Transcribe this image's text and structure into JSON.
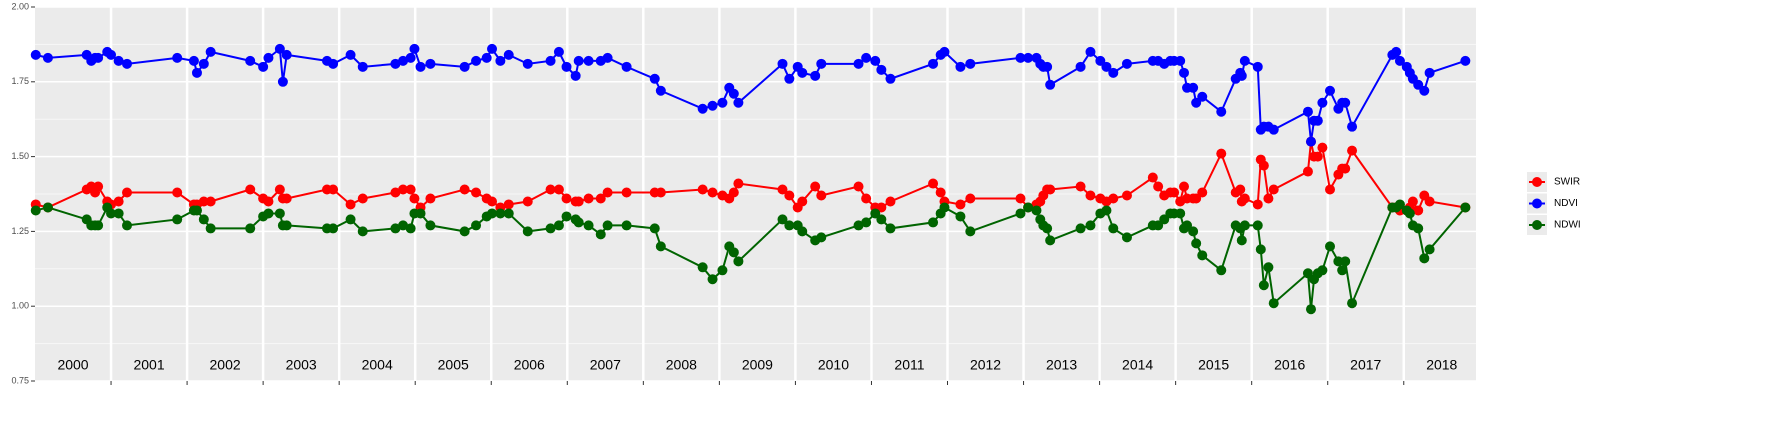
{
  "chart_data": {
    "type": "line",
    "x": [
      2000.01,
      2000.17,
      2000.68,
      2000.74,
      2000.79,
      2000.83,
      2000.95,
      2001.0,
      2001.1,
      2001.21,
      2001.87,
      2002.09,
      2002.13,
      2002.22,
      2002.31,
      2002.83,
      2003.0,
      2003.07,
      2003.22,
      2003.26,
      2003.31,
      2003.84,
      2003.92,
      2004.15,
      2004.31,
      2004.74,
      2004.84,
      2004.94,
      2004.99,
      2005.07,
      2005.2,
      2005.65,
      2005.8,
      2005.94,
      2006.01,
      2006.12,
      2006.23,
      2006.48,
      2006.78,
      2006.89,
      2006.99,
      2007.11,
      2007.15,
      2007.28,
      2007.44,
      2007.53,
      2007.78,
      2008.15,
      2008.23,
      2008.78,
      2008.91,
      2009.04,
      2009.13,
      2009.19,
      2009.25,
      2009.83,
      2009.92,
      2010.03,
      2010.09,
      2010.26,
      2010.34,
      2010.83,
      2010.93,
      2011.05,
      2011.13,
      2011.25,
      2011.81,
      2011.91,
      2011.96,
      2012.17,
      2012.3,
      2012.96,
      2013.06,
      2013.17,
      2013.22,
      2013.26,
      2013.31,
      2013.35,
      2013.75,
      2013.88,
      2014.01,
      2014.09,
      2014.18,
      2014.36,
      2014.7,
      2014.77,
      2014.85,
      2014.93,
      2014.98,
      2015.06,
      2015.11,
      2015.15,
      2015.23,
      2015.27,
      2015.35,
      2015.6,
      2015.79,
      2015.85,
      2015.87,
      2015.91,
      2016.08,
      2016.12,
      2016.16,
      2016.22,
      2016.29,
      2016.74,
      2016.78,
      2016.82,
      2016.87,
      2016.93,
      2017.03,
      2017.14,
      2017.19,
      2017.23,
      2017.32,
      2017.85,
      2017.9,
      2017.95,
      2018.04,
      2018.08,
      2018.12,
      2018.19,
      2018.27,
      2018.34,
      2018.81
    ],
    "series": [
      {
        "name": "SWIR",
        "color": "#ff0000",
        "values": [
          1.34,
          1.33,
          1.39,
          1.4,
          1.38,
          1.4,
          1.35,
          1.34,
          1.35,
          1.38,
          1.38,
          1.34,
          1.34,
          1.35,
          1.35,
          1.39,
          1.36,
          1.35,
          1.39,
          1.36,
          1.36,
          1.39,
          1.39,
          1.34,
          1.36,
          1.38,
          1.39,
          1.39,
          1.36,
          1.33,
          1.36,
          1.39,
          1.38,
          1.36,
          1.35,
          1.33,
          1.34,
          1.35,
          1.39,
          1.39,
          1.36,
          1.35,
          1.35,
          1.36,
          1.36,
          1.38,
          1.38,
          1.38,
          1.38,
          1.39,
          1.38,
          1.37,
          1.36,
          1.38,
          1.41,
          1.39,
          1.37,
          1.33,
          1.35,
          1.4,
          1.37,
          1.4,
          1.36,
          1.33,
          1.33,
          1.35,
          1.41,
          1.38,
          1.35,
          1.34,
          1.36,
          1.36,
          1.33,
          1.34,
          1.35,
          1.37,
          1.39,
          1.39,
          1.4,
          1.37,
          1.36,
          1.35,
          1.36,
          1.37,
          1.43,
          1.4,
          1.37,
          1.38,
          1.38,
          1.35,
          1.4,
          1.36,
          1.36,
          1.36,
          1.38,
          1.51,
          1.38,
          1.39,
          1.35,
          1.36,
          1.34,
          1.49,
          1.47,
          1.36,
          1.39,
          1.45,
          1.55,
          1.5,
          1.5,
          1.53,
          1.39,
          1.44,
          1.46,
          1.46,
          1.52,
          1.33,
          1.33,
          1.32,
          1.32,
          1.33,
          1.35,
          1.32,
          1.37,
          1.35,
          1.33
        ]
      },
      {
        "name": "NDVI",
        "color": "#0000ff",
        "values": [
          1.84,
          1.83,
          1.84,
          1.82,
          1.83,
          1.83,
          1.85,
          1.84,
          1.82,
          1.81,
          1.83,
          1.82,
          1.78,
          1.81,
          1.85,
          1.82,
          1.8,
          1.83,
          1.86,
          1.75,
          1.84,
          1.82,
          1.81,
          1.84,
          1.8,
          1.81,
          1.82,
          1.83,
          1.86,
          1.8,
          1.81,
          1.8,
          1.82,
          1.83,
          1.86,
          1.82,
          1.84,
          1.81,
          1.82,
          1.85,
          1.8,
          1.77,
          1.82,
          1.82,
          1.82,
          1.83,
          1.8,
          1.76,
          1.72,
          1.66,
          1.67,
          1.68,
          1.73,
          1.71,
          1.68,
          1.81,
          1.76,
          1.8,
          1.78,
          1.77,
          1.81,
          1.81,
          1.83,
          1.82,
          1.79,
          1.76,
          1.81,
          1.84,
          1.85,
          1.8,
          1.81,
          1.83,
          1.83,
          1.83,
          1.81,
          1.8,
          1.8,
          1.74,
          1.8,
          1.85,
          1.82,
          1.8,
          1.78,
          1.81,
          1.82,
          1.82,
          1.81,
          1.82,
          1.82,
          1.82,
          1.78,
          1.73,
          1.73,
          1.68,
          1.7,
          1.65,
          1.76,
          1.78,
          1.77,
          1.82,
          1.8,
          1.59,
          1.6,
          1.6,
          1.59,
          1.65,
          1.55,
          1.62,
          1.62,
          1.68,
          1.72,
          1.66,
          1.68,
          1.68,
          1.6,
          1.84,
          1.85,
          1.82,
          1.8,
          1.78,
          1.76,
          1.74,
          1.72,
          1.78,
          1.82
        ]
      },
      {
        "name": "NDWI",
        "color": "#006400",
        "values": [
          1.32,
          1.33,
          1.29,
          1.27,
          1.27,
          1.27,
          1.33,
          1.31,
          1.31,
          1.27,
          1.29,
          1.32,
          1.32,
          1.29,
          1.26,
          1.26,
          1.3,
          1.31,
          1.31,
          1.27,
          1.27,
          1.26,
          1.26,
          1.29,
          1.25,
          1.26,
          1.27,
          1.26,
          1.31,
          1.31,
          1.27,
          1.25,
          1.27,
          1.3,
          1.31,
          1.31,
          1.31,
          1.25,
          1.26,
          1.27,
          1.3,
          1.29,
          1.28,
          1.27,
          1.24,
          1.27,
          1.27,
          1.26,
          1.2,
          1.13,
          1.09,
          1.12,
          1.2,
          1.18,
          1.15,
          1.29,
          1.27,
          1.27,
          1.25,
          1.22,
          1.23,
          1.27,
          1.28,
          1.31,
          1.29,
          1.26,
          1.28,
          1.31,
          1.33,
          1.3,
          1.25,
          1.31,
          1.33,
          1.32,
          1.29,
          1.27,
          1.26,
          1.22,
          1.26,
          1.27,
          1.31,
          1.32,
          1.26,
          1.23,
          1.27,
          1.27,
          1.29,
          1.31,
          1.31,
          1.31,
          1.26,
          1.27,
          1.25,
          1.21,
          1.17,
          1.12,
          1.27,
          1.26,
          1.22,
          1.27,
          1.27,
          1.19,
          1.07,
          1.13,
          1.01,
          1.11,
          0.99,
          1.09,
          1.11,
          1.12,
          1.2,
          1.15,
          1.12,
          1.15,
          1.01,
          1.33,
          1.33,
          1.34,
          1.32,
          1.31,
          1.27,
          1.26,
          1.16,
          1.19,
          1.33
        ]
      }
    ],
    "xlim": [
      2000,
      2018.95
    ],
    "xgrid": [
      2001,
      2002,
      2003,
      2004,
      2005,
      2006,
      2007,
      2008,
      2009,
      2010,
      2011,
      2012,
      2013,
      2014,
      2015,
      2016,
      2017,
      2018
    ],
    "xticks": [
      {
        "value": 2000.5,
        "label": "2000"
      },
      {
        "value": 2001.5,
        "label": "2001"
      },
      {
        "value": 2002.5,
        "label": "2002"
      },
      {
        "value": 2003.5,
        "label": "2003"
      },
      {
        "value": 2004.5,
        "label": "2004"
      },
      {
        "value": 2005.5,
        "label": "2005"
      },
      {
        "value": 2006.5,
        "label": "2006"
      },
      {
        "value": 2007.5,
        "label": "2007"
      },
      {
        "value": 2008.5,
        "label": "2008"
      },
      {
        "value": 2009.5,
        "label": "2009"
      },
      {
        "value": 2010.5,
        "label": "2010"
      },
      {
        "value": 2011.5,
        "label": "2011"
      },
      {
        "value": 2012.5,
        "label": "2012"
      },
      {
        "value": 2013.5,
        "label": "2013"
      },
      {
        "value": 2014.5,
        "label": "2014"
      },
      {
        "value": 2015.5,
        "label": "2015"
      },
      {
        "value": 2016.5,
        "label": "2016"
      },
      {
        "value": 2017.5,
        "label": "2017"
      },
      {
        "value": 2018.5,
        "label": "2018"
      }
    ],
    "ylim": [
      0.75,
      2.0
    ],
    "yticks": [
      {
        "value": 0.75,
        "label": "0.75"
      },
      {
        "value": 1.0,
        "label": "1.00"
      },
      {
        "value": 1.25,
        "label": "1.25"
      },
      {
        "value": 1.5,
        "label": "1.50"
      },
      {
        "value": 1.75,
        "label": "1.75"
      },
      {
        "value": 2.0,
        "label": "2.00"
      }
    ],
    "grid": true,
    "legend": "right"
  }
}
